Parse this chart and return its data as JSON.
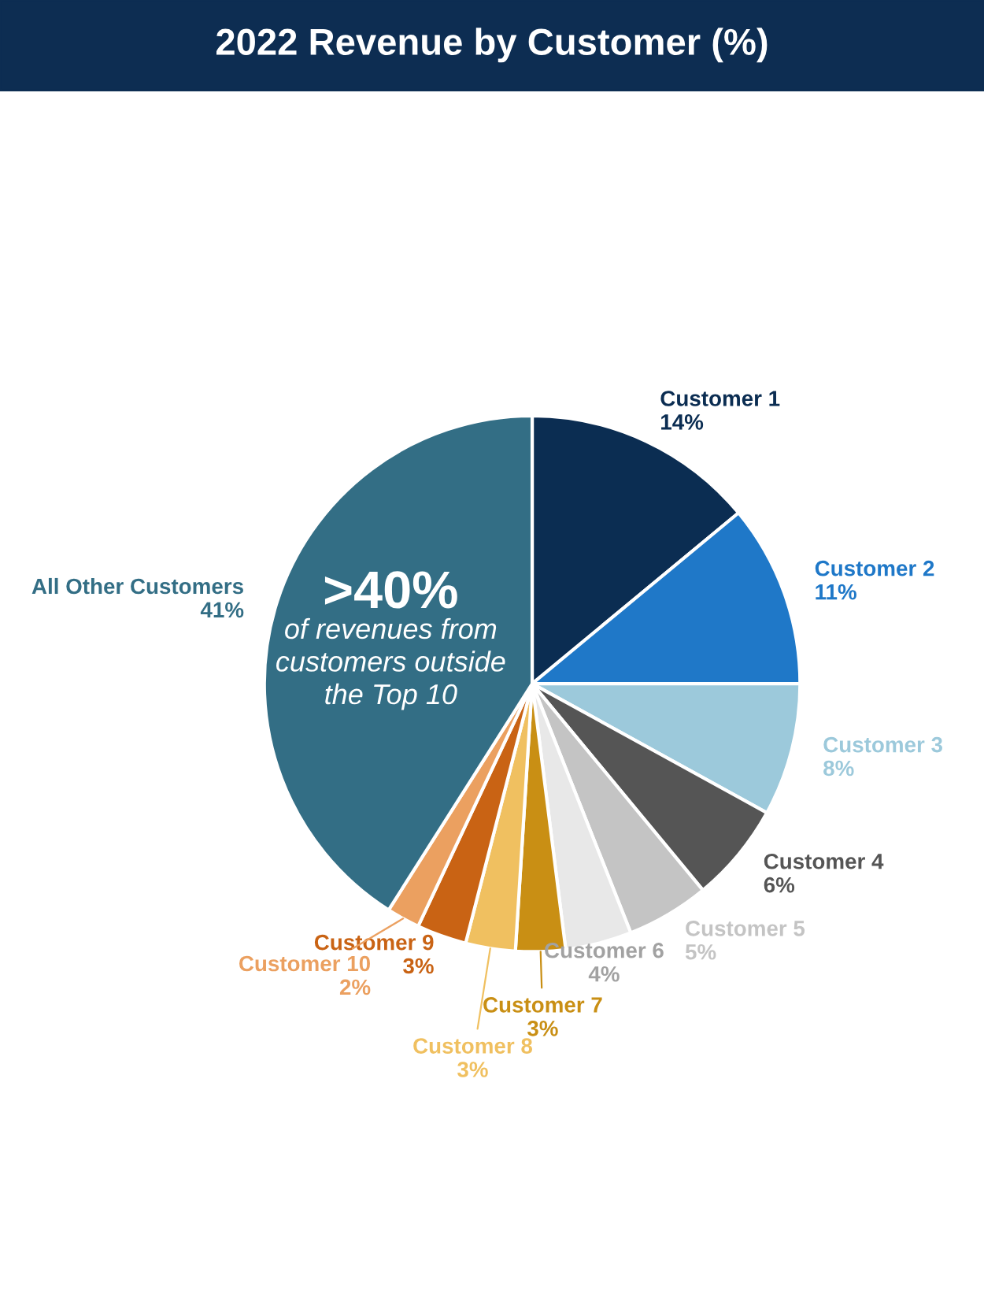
{
  "chart_data": {
    "type": "pie",
    "title": "2022 Revenue by Customer (%)",
    "categories": [
      "Customer 1",
      "Customer 2",
      "Customer 3",
      "Customer 4",
      "Customer 5",
      "Customer 6",
      "Customer 7",
      "Customer 8",
      "Customer 9",
      "Customer 10",
      "All Other Customers"
    ],
    "values": [
      14,
      11,
      8,
      6,
      5,
      4,
      3,
      3,
      3,
      2,
      41
    ],
    "value_labels": [
      "14%",
      "11%",
      "8%",
      "6%",
      "5%",
      "4%",
      "3%",
      "3%",
      "3%",
      "2%",
      "41%"
    ],
    "colors": [
      "#0b2d52",
      "#1f78c8",
      "#9cc9db",
      "#555555",
      "#c4c4c4",
      "#e8e8e8",
      "#c98f14",
      "#f0c060",
      "#c96314",
      "#eba060",
      "#336e85"
    ],
    "annotations": [
      ">40%",
      "of revenues from\ncustomers outside\nthe Top 10"
    ],
    "legend": false
  }
}
